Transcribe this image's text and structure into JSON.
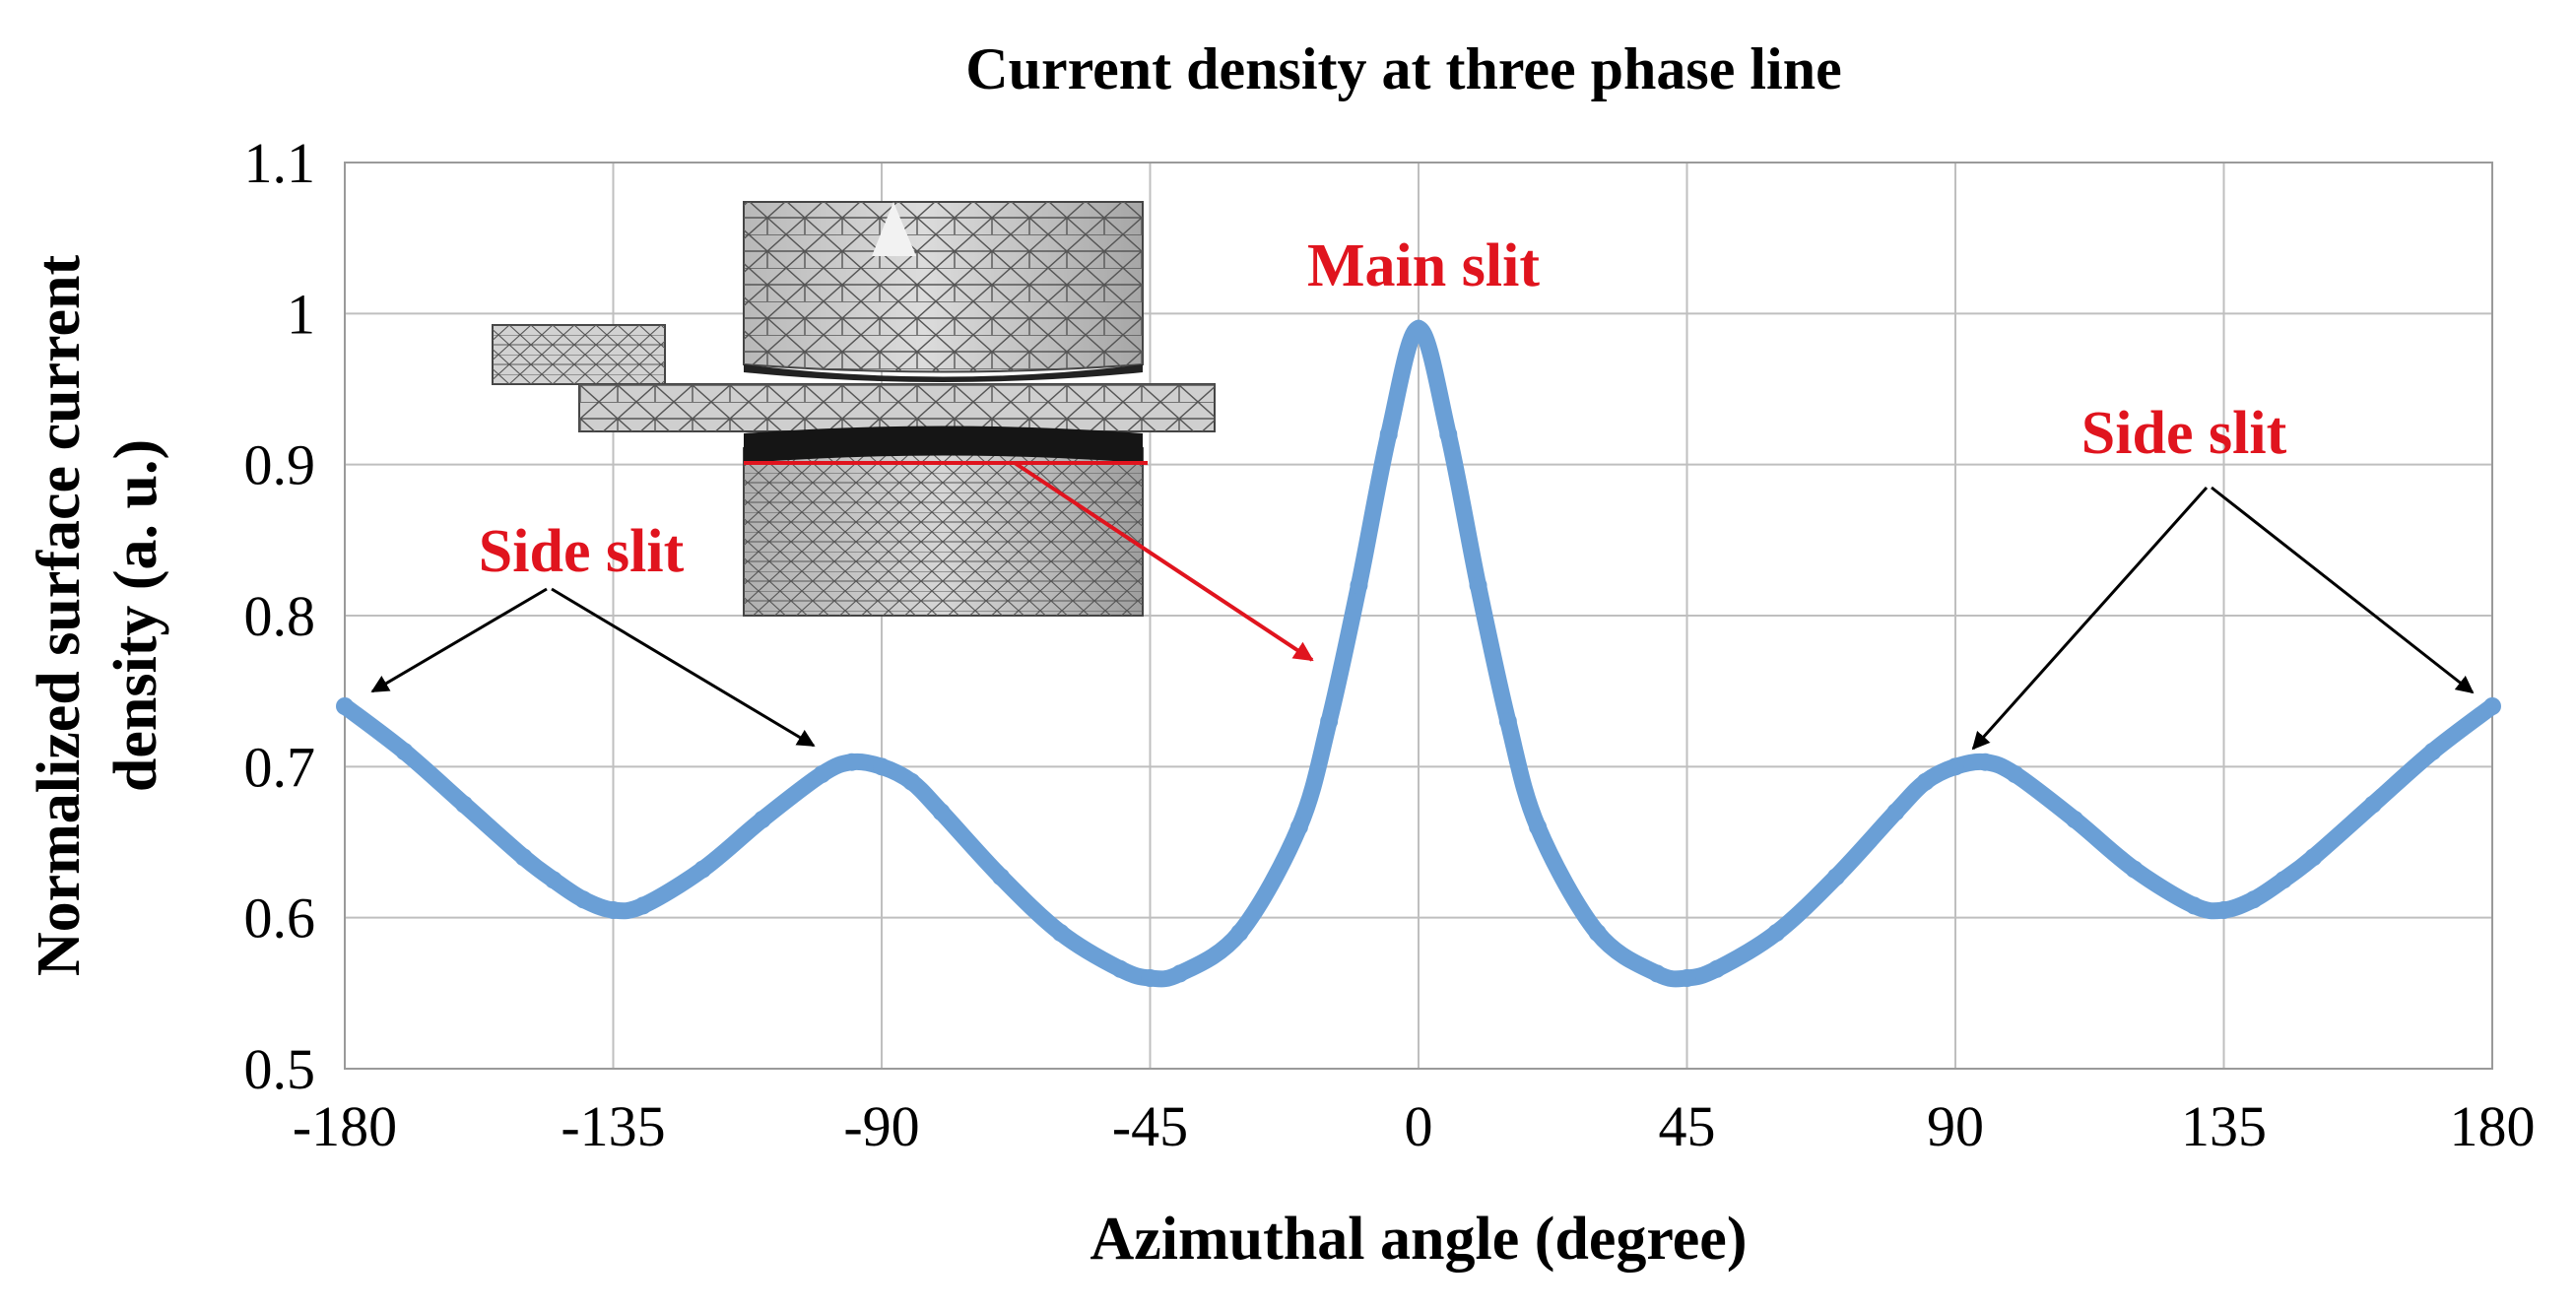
{
  "chart_data": {
    "type": "line",
    "title": "Current density at three phase line",
    "xlabel": "Azimuthal angle (degree)",
    "ylabel_lines": [
      "Normalized surface current",
      "density (a. u.)"
    ],
    "xlim": [
      -180,
      180
    ],
    "ylim": [
      0.5,
      1.1
    ],
    "x_ticks": [
      -180,
      -135,
      -90,
      -45,
      0,
      45,
      90,
      135,
      180
    ],
    "x_tick_labels": [
      "-180",
      "-135",
      "-90",
      "-45",
      "0",
      "45",
      "90",
      "135",
      "180"
    ],
    "y_ticks": [
      0.5,
      0.6,
      0.7,
      0.8,
      0.9,
      1.0,
      1.1
    ],
    "y_tick_labels": [
      "0.5",
      "0.6",
      "0.7",
      "0.8",
      "0.9",
      "1",
      "1.1"
    ],
    "grid": "horizontal and vertical major gridlines",
    "series": [
      {
        "name": "Normalized surface current density",
        "color": "#6a9fd6",
        "x": [
          -180,
          -170,
          -160,
          -150,
          -145,
          -140,
          -135,
          -130,
          -120,
          -110,
          -100,
          -95,
          -90,
          -85,
          -80,
          -70,
          -60,
          -50,
          -45,
          -40,
          -30,
          -20,
          -15,
          -10,
          -5,
          0,
          5,
          10,
          15,
          20,
          30,
          40,
          45,
          50,
          60,
          70,
          80,
          85,
          90,
          95,
          100,
          110,
          120,
          130,
          135,
          140,
          145,
          150,
          160,
          170,
          180
        ],
        "values": [
          0.74,
          0.71,
          0.675,
          0.64,
          0.625,
          0.612,
          0.605,
          0.608,
          0.632,
          0.665,
          0.695,
          0.703,
          0.7,
          0.69,
          0.67,
          0.627,
          0.59,
          0.566,
          0.56,
          0.563,
          0.59,
          0.66,
          0.73,
          0.82,
          0.92,
          0.99,
          0.92,
          0.82,
          0.73,
          0.66,
          0.59,
          0.563,
          0.56,
          0.566,
          0.59,
          0.627,
          0.67,
          0.69,
          0.7,
          0.703,
          0.695,
          0.665,
          0.632,
          0.608,
          0.605,
          0.612,
          0.625,
          0.64,
          0.675,
          0.71,
          0.74
        ]
      }
    ],
    "annotations": [
      {
        "text": "Main slit",
        "color": "#e0141e",
        "x": 0,
        "y": 0.99
      },
      {
        "text": "Side slit",
        "color": "#e0141e",
        "targets_x": [
          -180,
          -90
        ]
      },
      {
        "text": "Side slit",
        "color": "#e0141e",
        "targets_x": [
          90,
          180
        ]
      }
    ]
  },
  "colors": {
    "series": "#6a9fd6",
    "annotation_text": "#e0141e",
    "inset_line": "#e0141e",
    "grid": "#bfbfbf"
  },
  "inset": {
    "description_icon": "mesh-model-icon"
  }
}
